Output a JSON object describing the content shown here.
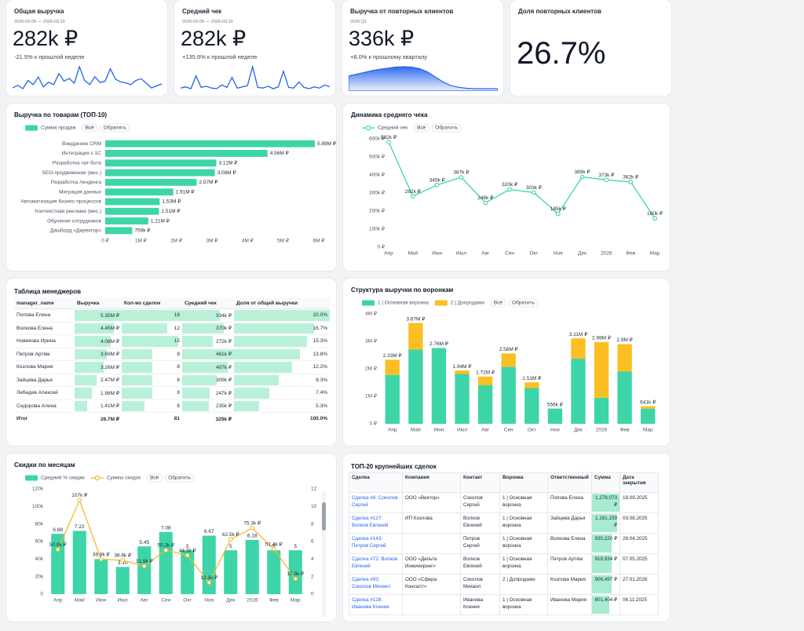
{
  "kpis": [
    {
      "title": "Общая выручка",
      "period": "2026-03-09 — 2026-03-15",
      "value": "282k ₽",
      "change": "-21.5% к прошлой неделе",
      "sparkline_type": "line",
      "color": "#2563eb",
      "sparkline": [
        30,
        38,
        28,
        52,
        40,
        62,
        33,
        47,
        40,
        72,
        50,
        58,
        44,
        92,
        52,
        40,
        63,
        46,
        50,
        86,
        56,
        48,
        45,
        40,
        52,
        57,
        44,
        30,
        36,
        42
      ]
    },
    {
      "title": "Средний чек",
      "period": "2026-03-09 — 2026-03-15",
      "value": "282k ₽",
      "change": "+135.6% к прошлой неделе",
      "sparkline_type": "line",
      "color": "#2563eb",
      "sparkline": [
        20,
        24,
        18,
        60,
        22,
        26,
        20,
        18,
        30,
        22,
        55,
        20,
        24,
        28,
        90,
        22,
        20,
        26,
        18,
        24,
        75,
        22,
        20,
        40,
        22,
        18,
        24,
        20,
        30,
        24
      ]
    },
    {
      "title": "Выручка от повторных клиентов",
      "period": "2026 Q1",
      "value": "336k ₽",
      "change": "+8.0% к прошлому кварталу",
      "sparkline_type": "area",
      "color": "#2563eb",
      "sparkline": [
        40,
        45,
        50,
        55,
        59,
        62,
        65,
        66,
        65,
        61,
        52,
        38,
        24,
        14,
        9,
        6,
        5,
        5,
        5,
        5
      ]
    },
    {
      "title": "Доля повторных клиентов",
      "value": "26.7%"
    }
  ],
  "chart_data": [
    {
      "type": "bar",
      "orientation": "horizontal",
      "title": "Выручка по товарам (ТОП-10)",
      "buttons": [
        "Всё",
        "Обратить"
      ],
      "categories": [
        "Внедрение CRM",
        "Интеграция с 1С",
        "Разработка чат-бота",
        "SEO-продвижение (мес.)",
        "Разработка лендинга",
        "Миграция данных",
        "Автоматизация бизнес-процессов",
        "Контекстная реклама (мес.)",
        "Обучение сотрудников",
        "Дашборд «Директор»"
      ],
      "series": [
        {
          "name": "Сумма продаж",
          "color": "#3dd5a7",
          "values": [
            5890000,
            4560000,
            3120000,
            3080000,
            2570000,
            1910000,
            1530000,
            1510000,
            1210000,
            759000
          ],
          "value_labels": [
            "5.89M ₽",
            "4.56M ₽",
            "3.12M ₽",
            "3.08M ₽",
            "2.57M ₽",
            "1.91M ₽",
            "1.53M ₽",
            "1.51M ₽",
            "1.21M ₽",
            "759k ₽"
          ]
        }
      ],
      "xlim": [
        0,
        6000000
      ],
      "xticks": [
        {
          "value": 0,
          "label": "0 ₽"
        },
        {
          "value": 1000000,
          "label": "1M ₽"
        },
        {
          "value": 2000000,
          "label": "2M ₽"
        },
        {
          "value": 3000000,
          "label": "3M ₽"
        },
        {
          "value": 4000000,
          "label": "4M ₽"
        },
        {
          "value": 5000000,
          "label": "5M ₽"
        },
        {
          "value": 6000000,
          "label": "6M ₽"
        }
      ]
    },
    {
      "type": "line",
      "title": "Динамика среднего чека",
      "buttons": [
        "Всё",
        "Обратить"
      ],
      "categories": [
        "Апр",
        "Май",
        "Июн",
        "Июл",
        "Авг",
        "Сен",
        "Окт",
        "Ноя",
        "Дек",
        "2026",
        "Фев",
        "Мар"
      ],
      "series": [
        {
          "name": "Средний чек",
          "color": "#3dd5a7",
          "values": [
            582000,
            282000,
            345000,
            387000,
            246000,
            320000,
            303000,
            185000,
            389000,
            373000,
            362000,
            160000
          ],
          "value_labels": [
            "582k ₽",
            "282k ₽",
            "345k ₽",
            "387k ₽",
            "246k ₽",
            "320k ₽",
            "303k ₽",
            "185k ₽",
            "389k ₽",
            "373k ₽",
            "362k ₽",
            "160k ₽"
          ]
        }
      ],
      "ylim": [
        0,
        600000
      ],
      "yticks": [
        {
          "value": 0,
          "label": "0 ₽"
        },
        {
          "value": 100000,
          "label": "100k ₽"
        },
        {
          "value": 200000,
          "label": "200k ₽"
        },
        {
          "value": 300000,
          "label": "300k ₽"
        },
        {
          "value": 400000,
          "label": "400k ₽"
        },
        {
          "value": 500000,
          "label": "500k ₽"
        },
        {
          "value": 600000,
          "label": "600k ₽"
        }
      ]
    },
    {
      "type": "bar",
      "stacked": true,
      "title": "Структура выручки по воронкам",
      "buttons": [
        "Всё",
        "Обратить"
      ],
      "categories": [
        "Апр",
        "Май",
        "Июн",
        "Июл",
        "Авг",
        "Сен",
        "Окт",
        "Ноя",
        "Дек",
        "2026",
        "Фев",
        "Мар"
      ],
      "series": [
        {
          "name": "1 | Основная воронка",
          "color": "#3dd5a7",
          "values": [
            1780000,
            2700000,
            2760000,
            1820000,
            1400000,
            2070000,
            1300000,
            556000,
            2370000,
            950000,
            1900000,
            550000
          ]
        },
        {
          "name": "2 | Допродажи",
          "color": "#fbbf24",
          "values": [
            550000,
            970000,
            0,
            120000,
            320000,
            490000,
            210000,
            0,
            740000,
            2030000,
            1000000,
            91000
          ]
        }
      ],
      "totals": [
        2330000,
        3670000,
        2760000,
        1940000,
        1720000,
        2560000,
        1510000,
        556000,
        3110000,
        2980000,
        2900000,
        641000
      ],
      "total_labels": [
        "2.33M ₽",
        "3.67M ₽",
        "2.76M ₽",
        "1.94M ₽",
        "1.72M ₽",
        "2.56M ₽",
        "1.51M ₽",
        "556k ₽",
        "3.11M ₽",
        "2.98M ₽",
        "2.9M ₽",
        "641k ₽"
      ],
      "ylim": [
        0,
        4000000
      ],
      "yticks": [
        {
          "value": 0,
          "label": "0 ₽"
        },
        {
          "value": 1000000,
          "label": "1M ₽"
        },
        {
          "value": 2000000,
          "label": "2M ₽"
        },
        {
          "value": 3000000,
          "label": "3M ₽"
        },
        {
          "value": 4000000,
          "label": "4M ₽"
        }
      ]
    },
    {
      "type": "bar",
      "title": "Скидки по месяцам",
      "buttons": [
        "Всё",
        "Обратить"
      ],
      "categories": [
        "Апр",
        "Май",
        "Июн",
        "Июл",
        "Авг",
        "Сен",
        "Окт",
        "Ноя",
        "Дек",
        "2026",
        "Фев",
        "Мар"
      ],
      "series": [
        {
          "name": "Средний % скидки",
          "type": "bar",
          "axis": "y2",
          "color": "#3dd5a7",
          "values": [
            6.88,
            7.22,
            4,
            3.1,
            5.45,
            7.08,
            5,
            6.67,
            5,
            6.18,
            5,
            5
          ],
          "value_labels": [
            "6.88",
            "7.22",
            null,
            "3.10",
            "5.45",
            "7.08",
            "5",
            "6.67",
            "5",
            "6.18",
            "5",
            "5"
          ]
        },
        {
          "name": "Суммы скидок",
          "type": "line",
          "color": "#f5b82e",
          "values": [
            50800,
            107000,
            39800,
            38600,
            31900,
            50200,
            44300,
            13100,
            62500,
            75300,
            51400,
            17500
          ],
          "value_labels": [
            "50.8k ₽",
            "107k ₽",
            "39.8k ₽",
            "38.6k ₽",
            "31.9k ₽",
            "50.2k ₽",
            "44.3k ₽",
            "13.1k ₽",
            "62.5k ₽",
            "75.3k ₽",
            "51.4k ₽",
            "17.5k ₽"
          ]
        }
      ],
      "ylim": [
        0,
        120000
      ],
      "yticks": [
        0,
        {
          "value": 20000,
          "label": "20k"
        },
        {
          "value": 40000,
          "label": "40k"
        },
        {
          "value": 60000,
          "label": "60k"
        },
        {
          "value": 80000,
          "label": "80k"
        },
        {
          "value": 100000,
          "label": "100k"
        },
        {
          "value": 120000,
          "label": "120k"
        }
      ],
      "y2lim": [
        0,
        12
      ],
      "y2ticks": [
        0,
        2,
        4,
        6,
        8,
        10,
        12
      ]
    }
  ],
  "managers_table": {
    "title": "Таблица менеджеров",
    "data_bar_color": "#b9f0d8",
    "columns": [
      "manager_name",
      "Выручка",
      "Кол-во сделок",
      "Средний чек",
      "Доля от общей выручки"
    ],
    "rows": [
      [
        "Попова Елена",
        {
          "value": 5350000,
          "label": "5.35M ₽"
        },
        16,
        {
          "value": 334000,
          "label": "334k ₽"
        },
        {
          "value": 20.0,
          "label": "20.0%"
        }
      ],
      [
        "Волкова Елена",
        {
          "value": 4450000,
          "label": "4.45M ₽"
        },
        12,
        {
          "value": 370000,
          "label": "370k ₽"
        },
        {
          "value": 16.7,
          "label": "16.7%"
        }
      ],
      [
        "Новикова Ирина",
        {
          "value": 4080000,
          "label": "4.08M ₽"
        },
        15,
        {
          "value": 272000,
          "label": "272k ₽"
        },
        {
          "value": 15.3,
          "label": "15.3%"
        }
      ],
      [
        "Петров Артём",
        {
          "value": 3690000,
          "label": "3.69M ₽"
        },
        8,
        {
          "value": 461000,
          "label": "461k ₽"
        },
        {
          "value": 13.8,
          "label": "13.8%"
        }
      ],
      [
        "Козлова Мария",
        {
          "value": 3260000,
          "label": "3.26M ₽"
        },
        8,
        {
          "value": 407000,
          "label": "407k ₽"
        },
        {
          "value": 12.2,
          "label": "12.2%"
        }
      ],
      [
        "Зайцева Дарья",
        {
          "value": 2470000,
          "label": "2.47M ₽"
        },
        8,
        {
          "value": 309000,
          "label": "309k ₽"
        },
        {
          "value": 9.3,
          "label": "9.3%"
        }
      ],
      [
        "Лебедев Алексей",
        {
          "value": 1980000,
          "label": "1.98M ₽"
        },
        8,
        {
          "value": 247000,
          "label": "247k ₽"
        },
        {
          "value": 7.4,
          "label": "7.4%"
        }
      ],
      [
        "Сидорова Алина",
        {
          "value": 1410000,
          "label": "1.41M ₽"
        },
        6,
        {
          "value": 235000,
          "label": "235k ₽"
        },
        {
          "value": 5.3,
          "label": "5.3%"
        }
      ]
    ],
    "total": [
      "Итог",
      "26.7M ₽",
      81,
      "329k ₽",
      "100.0%"
    ]
  },
  "deals_table": {
    "title": "ТОП-20 крупнейших сделок",
    "data_bar_color": "#a7ecd0",
    "columns": [
      "Сделка",
      "Компания",
      "Контакт",
      "Воронка",
      "Ответственный",
      "Сумма",
      "Дата закрытия"
    ],
    "rows": [
      [
        "Сделка #6: Соколов Сергей",
        "ООО «Вектор»",
        "Соколов Сергей",
        "1 | Основная воронка",
        "Попова Елена",
        {
          "value": 1278073,
          "label": "1,278,073 ₽"
        },
        "18.09.2025"
      ],
      [
        "Сделка #127: Волков Евгений",
        "ИП Козлова",
        "Волков Евгений",
        "1 | Основная воронка",
        "Зайцева Дарья",
        {
          "value": 1181159,
          "label": "1,181,159 ₽"
        },
        "03.08.2025"
      ],
      [
        "Сделка #143: Петров Сергей",
        null,
        "Петров Сергей",
        "1 | Основная воронка",
        "Волкова Елена",
        {
          "value": 930220,
          "label": "930,220 ₽"
        },
        "29.04.2025"
      ],
      [
        "Сделка #72: Волков Евгений",
        "ООО «Дельта Инжиниринг»",
        "Волков Евгений",
        "1 | Основная воронка",
        "Петров Артём",
        {
          "value": 918934,
          "label": "918,934 ₽"
        },
        "07.05.2025"
      ],
      [
        "Сделка #93: Соколов Михаил",
        "ООО «Сфера Консалт»",
        "Соколов Михаил",
        "2 | Допродажи",
        "Козлова Мария",
        {
          "value": 906497,
          "label": "906,497 ₽"
        },
        "27.01.2026"
      ],
      [
        "Сделка #128: Иванова Ксения",
        null,
        "Иванова Ксения",
        "1 | Основная воронка",
        "Иванова Мария",
        {
          "value": 801404,
          "label": "801,404 ₽"
        },
        "06.11.2025"
      ]
    ]
  }
}
